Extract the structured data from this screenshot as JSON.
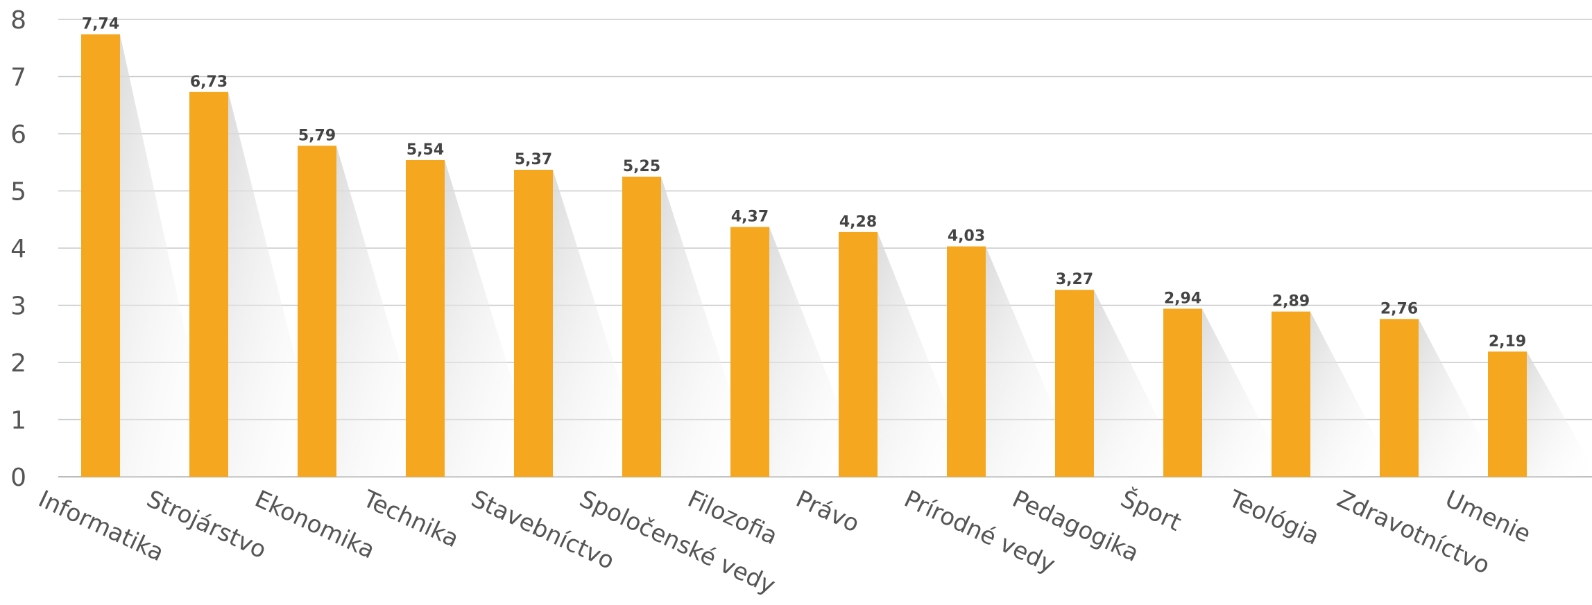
{
  "chart_data": {
    "type": "bar",
    "categories": [
      "Informatika",
      "Strojárstvo",
      "Ekonomika",
      "Technika",
      "Stavebníctvo",
      "Spoločenské vedy",
      "Filozofia",
      "Právo",
      "Prírodné vedy",
      "Pedagogika",
      "Šport",
      "Teológia",
      "Zdravotníctvo",
      "Umenie"
    ],
    "values": [
      7.74,
      6.73,
      5.79,
      5.54,
      5.37,
      5.25,
      4.37,
      4.28,
      4.03,
      3.27,
      2.94,
      2.89,
      2.76,
      2.19
    ],
    "value_labels": [
      "7,74",
      "6,73",
      "5,79",
      "5,54",
      "5,37",
      "5,25",
      "4,37",
      "4,28",
      "4,03",
      "3,27",
      "2,94",
      "2,89",
      "2,76",
      "2,19"
    ],
    "ylim": [
      0,
      8
    ],
    "yticks": [
      "0",
      "1",
      "2",
      "3",
      "4",
      "5",
      "6",
      "7",
      "8"
    ],
    "grid": true,
    "title": "",
    "xlabel": "",
    "ylabel": "",
    "bar_color": "#F5A81F",
    "grid_color": "#c8c8c8",
    "text_color": "#555555"
  }
}
